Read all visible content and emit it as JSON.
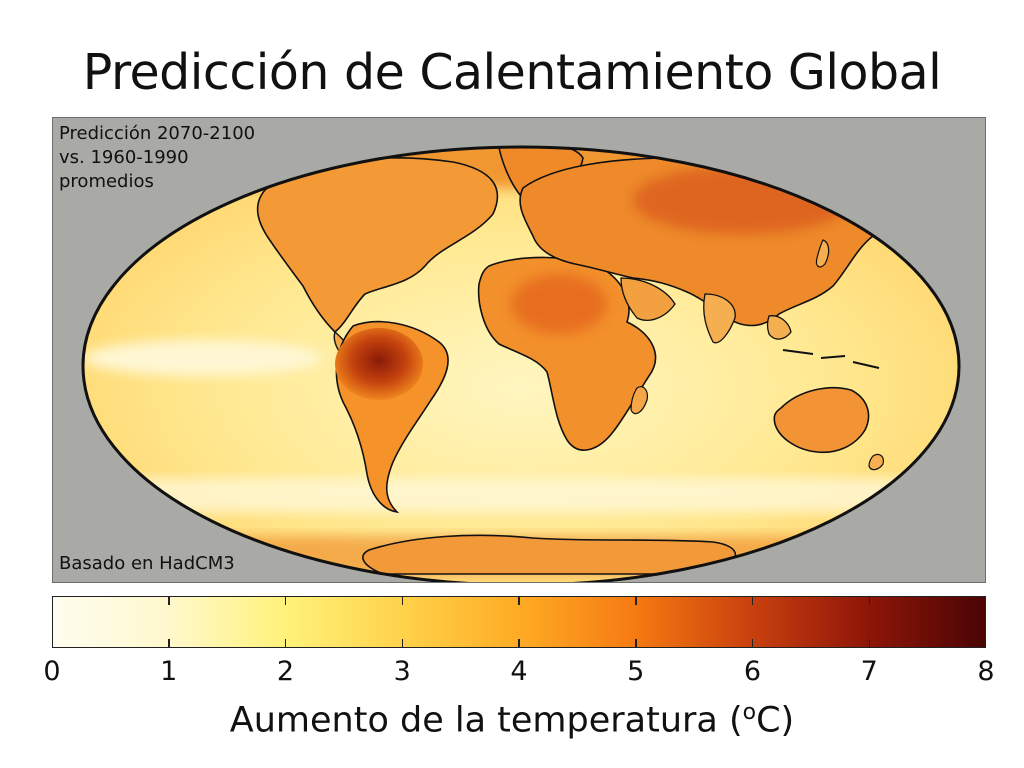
{
  "title": "Predicción de Calentamiento Global",
  "annotation": {
    "line1": "Predicción 2070-2100",
    "line2": "vs. 1960-1990",
    "line3": "promedios"
  },
  "source_note": "Basado en HadCM3",
  "colorbar": {
    "ticks": [
      "0",
      "1",
      "2",
      "3",
      "4",
      "5",
      "6",
      "7",
      "8"
    ],
    "label_prefix": "Aumento de la temperatura (",
    "label_sup": "o",
    "label_suffix": "C)",
    "min": 0,
    "max": 8,
    "stops": [
      "#fffdf0",
      "#fff8cc",
      "#fff27a",
      "#ffd24a",
      "#ffab24",
      "#f57a12",
      "#c8400e",
      "#8e1608",
      "#4a0404"
    ]
  },
  "map": {
    "projection": "mollweide",
    "background_color": "#a9aaa6",
    "ocean_color": "#fff0a0"
  }
}
